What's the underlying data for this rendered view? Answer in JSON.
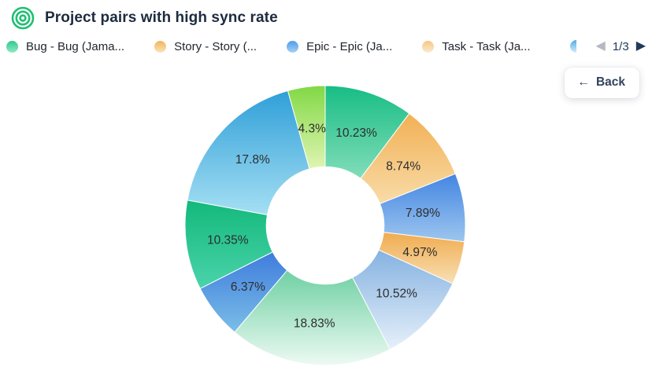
{
  "header": {
    "title": "Project pairs with high sync rate",
    "icon_color": "#1fbf74"
  },
  "legend": {
    "items": [
      {
        "label": "Bug - Bug (Jama...",
        "color_top": "#2fc98d",
        "color_bottom": "#90e9c6",
        "partial": false
      },
      {
        "label": "Story - Story (...",
        "color_top": "#f2b459",
        "color_bottom": "#f9e4bc",
        "partial": false
      },
      {
        "label": "Epic - Epic (Ja...",
        "color_top": "#4f9ee9",
        "color_bottom": "#a6d0f4",
        "partial": false
      },
      {
        "label": "Task - Task (Ja...",
        "color_top": "#f6c685",
        "color_bottom": "#fbeccf",
        "partial": false
      },
      {
        "label": "",
        "color_top": "#55ace5",
        "color_bottom": "#d3ecf9",
        "partial": true
      }
    ],
    "pagination": {
      "current": "1/3",
      "prev_icon": "◀",
      "next_icon": "▶",
      "prev_enabled": false,
      "next_enabled": true
    }
  },
  "back_button": {
    "arrow": "←",
    "label": "Back"
  },
  "chart_data": {
    "type": "pie",
    "subtype": "donut",
    "title": "Project pairs with high sync rate",
    "start_angle_deg": 0,
    "direction": "clockwise",
    "inner_radius_ratio": 0.42,
    "legend_position": "top",
    "labels": [
      "10.23%",
      "8.74%",
      "7.89%",
      "4.97%",
      "10.52%",
      "18.83%",
      "6.37%",
      "10.35%",
      "17.8%",
      "4.3%"
    ],
    "values": [
      10.23,
      8.74,
      7.89,
      4.97,
      10.52,
      18.83,
      6.37,
      10.35,
      17.8,
      4.3
    ],
    "slice_colors": [
      {
        "top": "#17bd84",
        "bottom": "#82ddb9"
      },
      {
        "top": "#f2b055",
        "bottom": "#f8dca8"
      },
      {
        "top": "#4385e2",
        "bottom": "#9dc6ef"
      },
      {
        "top": "#f0ab4f",
        "bottom": "#f8e0b4"
      },
      {
        "top": "#85b2e1",
        "bottom": "#e6f0fa"
      },
      {
        "top": "#6fd0a3",
        "bottom": "#edfaf3"
      },
      {
        "top": "#3f7cdd",
        "bottom": "#7abee7"
      },
      {
        "top": "#13b97b",
        "bottom": "#4ad3ab"
      },
      {
        "top": "#2f9fd8",
        "bottom": "#a5dff3"
      },
      {
        "top": "#81d845",
        "bottom": "#dff5b2"
      }
    ],
    "label_color": "#2d2d2d"
  }
}
